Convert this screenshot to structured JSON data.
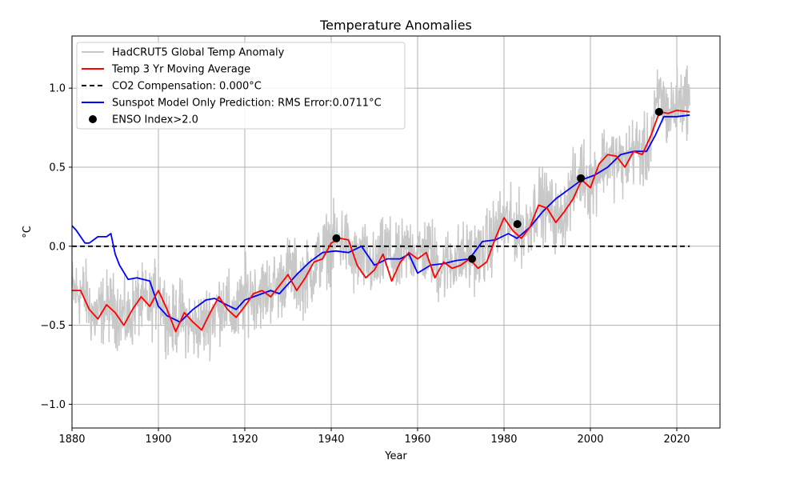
{
  "chart_data": {
    "type": "line",
    "title": "Temperature Anomalies",
    "xlabel": "Year",
    "ylabel": "°C",
    "xlim": [
      1880,
      2030
    ],
    "ylim": [
      -1.15,
      1.33
    ],
    "grid": true,
    "legend_position": "upper-left",
    "x_ticks": [
      1880,
      1900,
      1920,
      1940,
      1960,
      1980,
      2000,
      2020
    ],
    "x_tick_labels": [
      "1880",
      "1900",
      "1920",
      "1940",
      "1960",
      "1980",
      "2000",
      "2020"
    ],
    "y_ticks": [
      -1.0,
      -0.5,
      0.0,
      0.5,
      1.0
    ],
    "y_tick_labels": [
      "−1.0",
      "−0.5",
      "0.0",
      "0.5",
      "1.0"
    ],
    "colors": {
      "hadcrut": "#c8c8c8",
      "moving_average": "#ff0000",
      "co2": "#000000",
      "sunspot": "#0000ff",
      "enso": "#000000",
      "grid": "#b0b0b0"
    },
    "series": [
      {
        "name": "HadCRUT5 Global Temp Anomaly",
        "style": "monthly-noise",
        "noise_amplitude": 0.18,
        "x": [
          1880,
          1883,
          1885,
          1888,
          1890,
          1893,
          1895,
          1898,
          1900,
          1903,
          1905,
          1908,
          1910,
          1913,
          1915,
          1918,
          1920,
          1923,
          1925,
          1928,
          1930,
          1933,
          1935,
          1938,
          1940,
          1943,
          1945,
          1948,
          1950,
          1953,
          1955,
          1958,
          1960,
          1963,
          1965,
          1968,
          1970,
          1973,
          1975,
          1978,
          1980,
          1983,
          1985,
          1988,
          1990,
          1993,
          1995,
          1998,
          2000,
          2003,
          2005,
          2008,
          2010,
          2013,
          2015,
          2016,
          2018,
          2020,
          2023
        ],
        "values": [
          -0.28,
          -0.3,
          -0.45,
          -0.38,
          -0.4,
          -0.48,
          -0.35,
          -0.38,
          -0.28,
          -0.5,
          -0.42,
          -0.52,
          -0.5,
          -0.42,
          -0.35,
          -0.45,
          -0.3,
          -0.3,
          -0.28,
          -0.25,
          -0.15,
          -0.22,
          -0.18,
          -0.05,
          0.02,
          0.05,
          -0.1,
          -0.08,
          -0.15,
          0.0,
          -0.12,
          0.0,
          -0.05,
          -0.02,
          -0.15,
          -0.08,
          -0.08,
          -0.05,
          -0.05,
          0.1,
          0.15,
          0.12,
          0.1,
          0.28,
          0.25,
          0.15,
          0.3,
          0.48,
          0.38,
          0.55,
          0.55,
          0.52,
          0.62,
          0.58,
          0.8,
          0.98,
          0.82,
          0.9,
          0.95
        ]
      },
      {
        "name": "Temp 3 Yr Moving Average",
        "x": [
          1880,
          1882,
          1884,
          1886,
          1888,
          1890,
          1892,
          1894,
          1896,
          1898,
          1900,
          1902,
          1904,
          1906,
          1908,
          1910,
          1912,
          1914,
          1916,
          1918,
          1920,
          1922,
          1924,
          1926,
          1928,
          1930,
          1932,
          1934,
          1936,
          1938,
          1940,
          1942,
          1944,
          1946,
          1948,
          1950,
          1952,
          1954,
          1956,
          1958,
          1960,
          1962,
          1964,
          1966,
          1968,
          1970,
          1972,
          1974,
          1976,
          1978,
          1980,
          1982,
          1984,
          1986,
          1988,
          1990,
          1992,
          1994,
          1996,
          1998,
          2000,
          2002,
          2004,
          2006,
          2008,
          2010,
          2012,
          2014,
          2016,
          2018,
          2020,
          2023
        ],
        "values": [
          -0.28,
          -0.28,
          -0.4,
          -0.46,
          -0.37,
          -0.42,
          -0.5,
          -0.4,
          -0.32,
          -0.38,
          -0.28,
          -0.4,
          -0.54,
          -0.42,
          -0.48,
          -0.53,
          -0.42,
          -0.32,
          -0.4,
          -0.45,
          -0.38,
          -0.3,
          -0.28,
          -0.32,
          -0.25,
          -0.18,
          -0.28,
          -0.2,
          -0.1,
          -0.08,
          0.02,
          0.05,
          0.04,
          -0.12,
          -0.2,
          -0.15,
          -0.05,
          -0.22,
          -0.1,
          -0.04,
          -0.08,
          -0.04,
          -0.2,
          -0.1,
          -0.14,
          -0.12,
          -0.08,
          -0.14,
          -0.1,
          0.05,
          0.18,
          0.1,
          0.05,
          0.12,
          0.26,
          0.24,
          0.15,
          0.22,
          0.3,
          0.42,
          0.37,
          0.52,
          0.58,
          0.57,
          0.5,
          0.6,
          0.58,
          0.7,
          0.85,
          0.84,
          0.86,
          0.85
        ]
      },
      {
        "name": "CO2 Compensation: 0.000°C",
        "style": "dashed",
        "x": [
          1880,
          2023
        ],
        "values": [
          0.0,
          0.0
        ]
      },
      {
        "name": "Sunspot Model Only Prediction: RMS Error:0.0711°C",
        "x": [
          1880,
          1881,
          1883,
          1884,
          1886,
          1888,
          1889,
          1890,
          1891,
          1893,
          1895,
          1898,
          1900,
          1902,
          1905,
          1908,
          1911,
          1913,
          1915,
          1918,
          1920,
          1923,
          1926,
          1928,
          1932,
          1935,
          1938,
          1941,
          1944,
          1947,
          1950,
          1953,
          1956,
          1958,
          1960,
          1963,
          1966,
          1969,
          1972,
          1975,
          1978,
          1981,
          1983,
          1986,
          1989,
          1992,
          1995,
          1998,
          2001,
          2004,
          2007,
          2010,
          2013,
          2015,
          2017,
          2020,
          2023
        ],
        "values": [
          0.13,
          0.1,
          0.02,
          0.02,
          0.06,
          0.06,
          0.08,
          -0.05,
          -0.12,
          -0.21,
          -0.2,
          -0.22,
          -0.38,
          -0.44,
          -0.48,
          -0.4,
          -0.34,
          -0.33,
          -0.36,
          -0.4,
          -0.34,
          -0.31,
          -0.28,
          -0.3,
          -0.18,
          -0.1,
          -0.04,
          -0.03,
          -0.04,
          0.0,
          -0.12,
          -0.08,
          -0.08,
          -0.05,
          -0.17,
          -0.12,
          -0.11,
          -0.09,
          -0.08,
          0.03,
          0.04,
          0.08,
          0.05,
          0.12,
          0.22,
          0.3,
          0.36,
          0.42,
          0.45,
          0.5,
          0.58,
          0.6,
          0.6,
          0.7,
          0.82,
          0.82,
          0.83
        ]
      }
    ],
    "enso_points": {
      "name": "ENSO Index>2.0",
      "x": [
        1941.2,
        1972.6,
        1983.1,
        1997.8,
        2015.9
      ],
      "values": [
        0.05,
        -0.08,
        0.14,
        0.43,
        0.85
      ]
    }
  }
}
